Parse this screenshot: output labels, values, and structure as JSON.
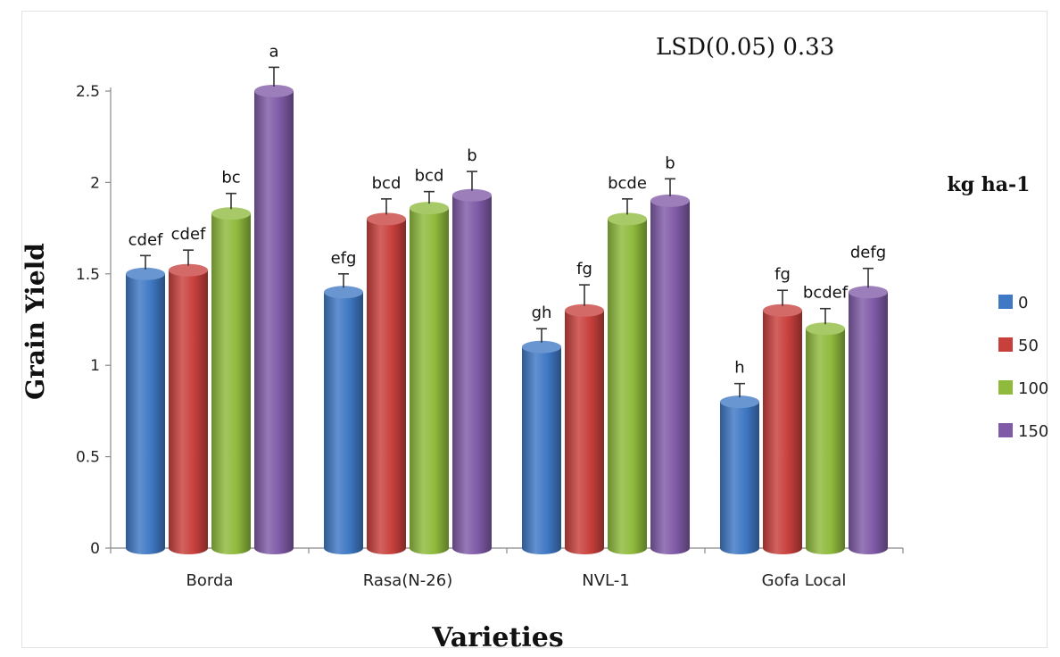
{
  "chart_data": {
    "type": "bar",
    "annotation": "LSD(0.05)  0.33",
    "xlabel": "Varieties",
    "ylabel": "Grain Yield",
    "legend_title": "kg ha-1",
    "legend_position": "right",
    "ylim": [
      0,
      2.5
    ],
    "yticks": [
      "0",
      "0.5",
      "1",
      "1.5",
      "2",
      "2.5"
    ],
    "categories": [
      "Borda",
      "Rasa(N-26)",
      "NVL-1",
      "Gofa Local"
    ],
    "series": [
      {
        "name": "0",
        "color": "#3f78c4",
        "values": [
          1.5,
          1.4,
          1.1,
          0.8
        ],
        "errors": [
          0.1,
          0.1,
          0.1,
          0.1
        ],
        "letters": [
          "cdef",
          "efg",
          "gh",
          "h"
        ]
      },
      {
        "name": "50",
        "color": "#c8403c",
        "values": [
          1.52,
          1.8,
          1.3,
          1.3
        ],
        "errors": [
          0.11,
          0.11,
          0.14,
          0.11
        ],
        "letters": [
          "cdef",
          "bcd",
          "fg",
          "fg"
        ]
      },
      {
        "name": "100",
        "color": "#8fba3c",
        "values": [
          1.83,
          1.86,
          1.8,
          1.2
        ],
        "errors": [
          0.11,
          0.09,
          0.11,
          0.11
        ],
        "letters": [
          "bc",
          "bcd",
          "bcde",
          "bcdef"
        ]
      },
      {
        "name": "150",
        "color": "#7f5aa7",
        "values": [
          2.5,
          1.93,
          1.9,
          1.4
        ],
        "errors": [
          0.13,
          0.13,
          0.12,
          0.13
        ],
        "letters": [
          "a",
          "b",
          "b",
          "defg"
        ]
      }
    ]
  }
}
